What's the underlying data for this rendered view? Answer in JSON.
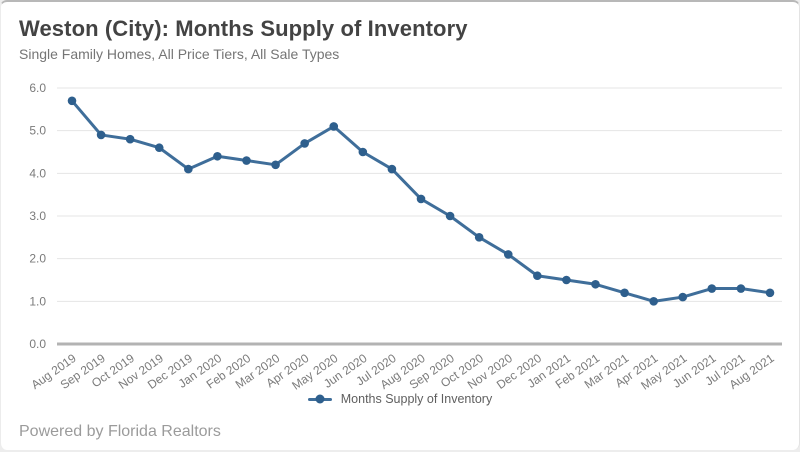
{
  "header": {
    "title": "Weston (City): Months Supply of Inventory",
    "subtitle": "Single Family Homes, All Price Tiers, All Sale Types"
  },
  "legend": {
    "label": "Months Supply of Inventory"
  },
  "footer": {
    "text": "Powered by Florida Realtors"
  },
  "colors": {
    "line": "#3f6e9a",
    "marker": "#2e5f8d",
    "grid": "#e5e5e5",
    "axis_line": "#b3b3b3",
    "tick_text": "#7b7b7b",
    "title_text": "#434343",
    "subtitle_text": "#757575",
    "legend_text": "#5f5f5f",
    "footer_text": "#9b9b9b"
  },
  "chart_data": {
    "type": "line",
    "title": "Weston (City): Months Supply of Inventory",
    "subtitle": "Single Family Homes, All Price Tiers, All Sale Types",
    "categories": [
      "Aug 2019",
      "Sep 2019",
      "Oct 2019",
      "Nov 2019",
      "Dec 2019",
      "Jan 2020",
      "Feb 2020",
      "Mar 2020",
      "Apr 2020",
      "May 2020",
      "Jun 2020",
      "Jul 2020",
      "Aug 2020",
      "Sep 2020",
      "Oct 2020",
      "Nov 2020",
      "Dec 2020",
      "Jan 2021",
      "Feb 2021",
      "Mar 2021",
      "Apr 2021",
      "May 2021",
      "Jun 2021",
      "Jul 2021",
      "Aug 2021"
    ],
    "series": [
      {
        "name": "Months Supply of Inventory",
        "values": [
          5.7,
          4.9,
          4.8,
          4.6,
          4.1,
          4.4,
          4.3,
          4.2,
          4.7,
          5.1,
          4.5,
          4.1,
          3.4,
          3.0,
          2.5,
          2.1,
          1.6,
          1.5,
          1.4,
          1.2,
          1.0,
          1.1,
          1.3,
          1.3,
          1.2
        ]
      }
    ],
    "xlabel": "",
    "ylabel": "",
    "ylim": [
      0.0,
      6.0
    ],
    "yticks": [
      0,
      1,
      2,
      3,
      4,
      5,
      6
    ],
    "ytick_labels": [
      "0.0",
      "1.0",
      "2.0",
      "3.0",
      "4.0",
      "5.0",
      "6.0"
    ],
    "grid": true,
    "marker": "circle",
    "legend_position": "bottom-center",
    "xtick_rotation": -35
  }
}
